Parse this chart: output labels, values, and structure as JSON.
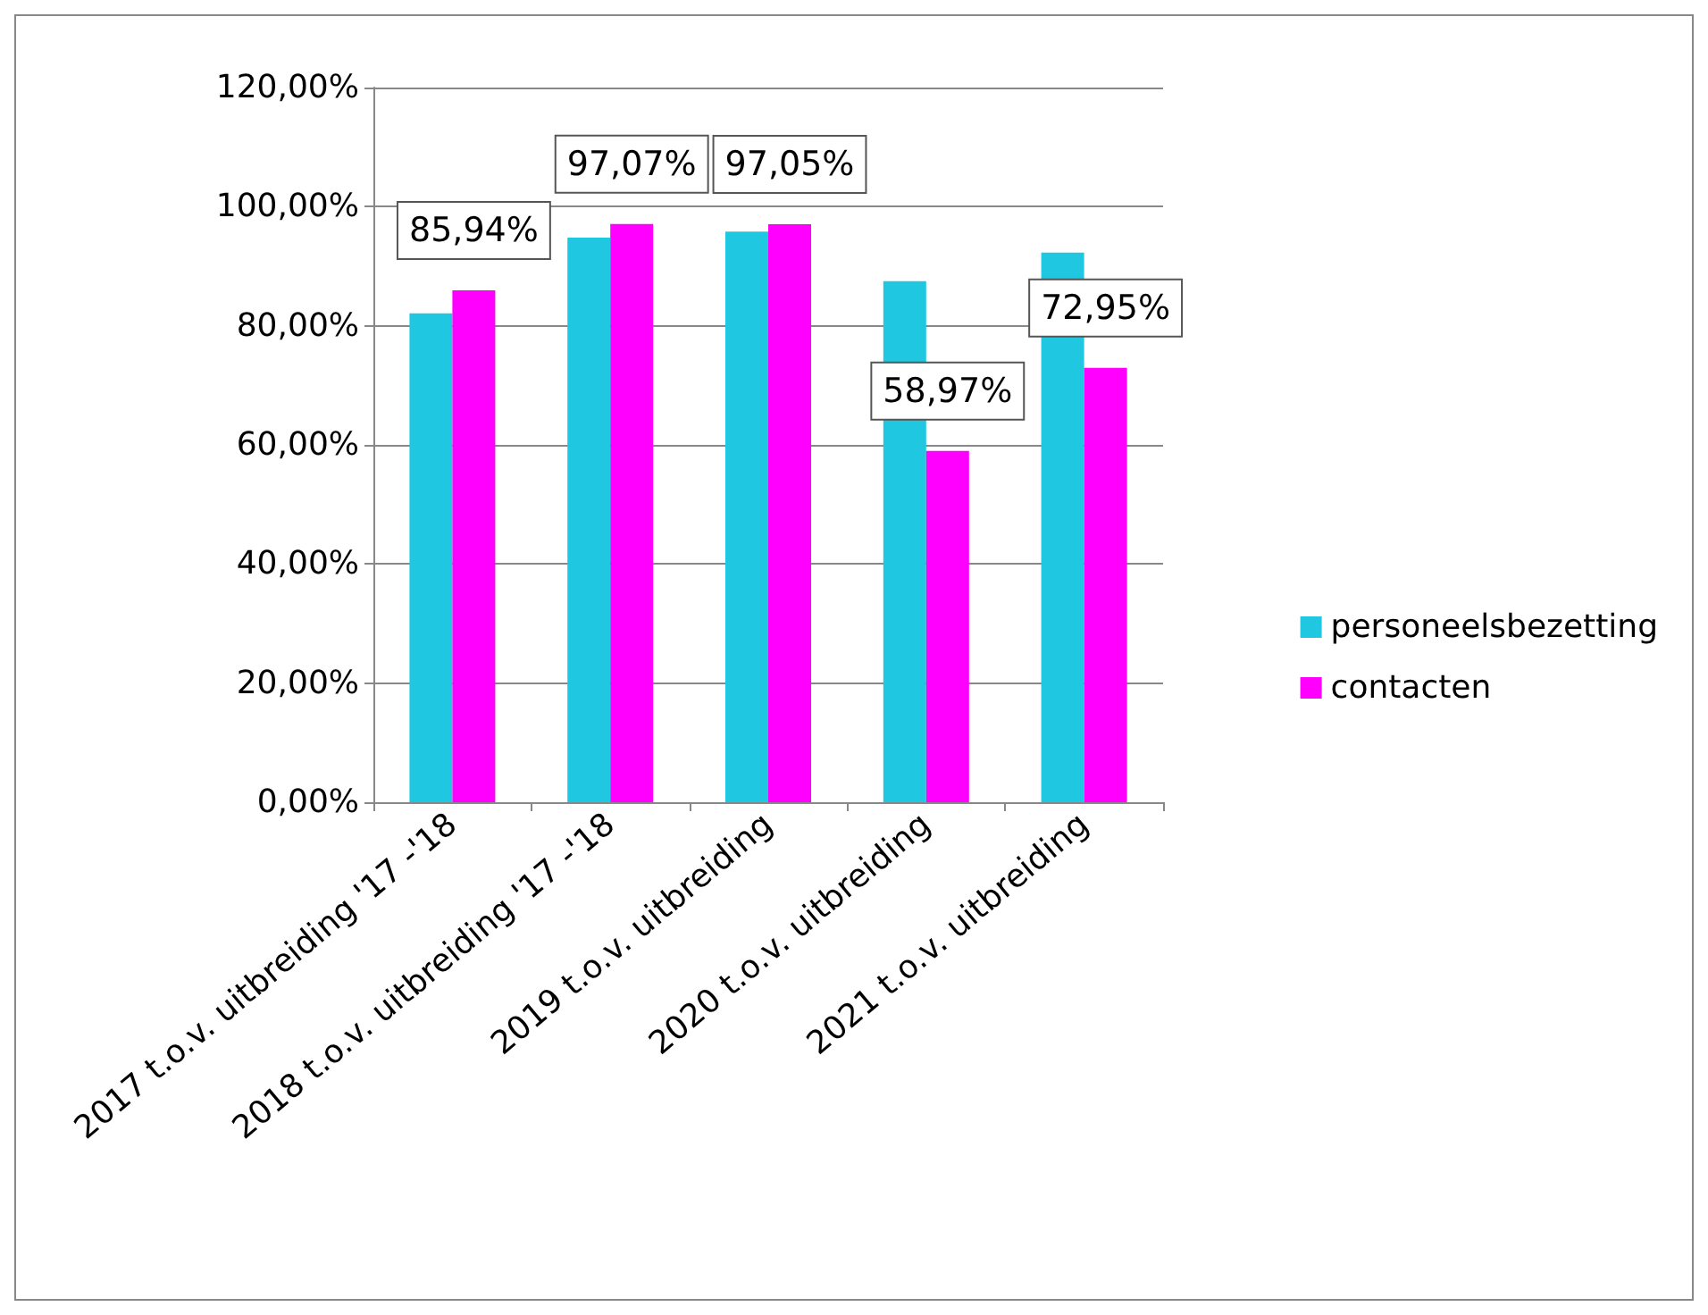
{
  "chart_data": {
    "type": "bar",
    "categories": [
      "2017 t.o.v. uitbreiding '17 -'18",
      "2018 t.o.v. uitbreiding '17 -'18",
      "2019 t.o.v. uitbreiding",
      "2020 t.o.v. uitbreiding",
      "2021 t.o.v. uitbreiding"
    ],
    "series": [
      {
        "name": "personeelsbezetting",
        "color": "#1fc8e0",
        "values": [
          82.1,
          94.8,
          95.8,
          87.5,
          92.3
        ]
      },
      {
        "name": "contacten",
        "color": "#ff00ff",
        "values": [
          85.94,
          97.07,
          97.05,
          58.97,
          72.95
        ],
        "value_labels": [
          "85,94%",
          "97,07%",
          "97,05%",
          "58,97%",
          "72,95%"
        ]
      }
    ],
    "ylim": [
      0,
      120
    ],
    "yticks": [
      {
        "value": 0,
        "label": "0,00%"
      },
      {
        "value": 20,
        "label": "20,00%"
      },
      {
        "value": 40,
        "label": "40,00%"
      },
      {
        "value": 60,
        "label": "60,00%"
      },
      {
        "value": 80,
        "label": "80,00%"
      },
      {
        "value": 100,
        "label": "100,00%"
      },
      {
        "value": 120,
        "label": "120,00%"
      }
    ],
    "grid": "y",
    "legend": "right"
  }
}
